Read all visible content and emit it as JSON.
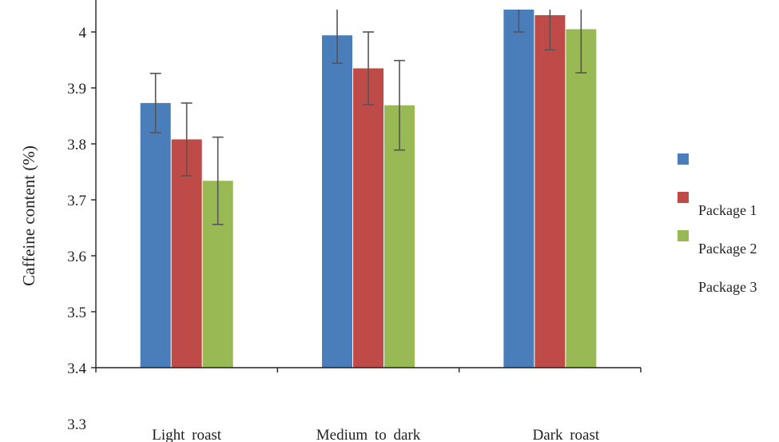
{
  "chart_data": {
    "type": "bar",
    "title": "",
    "xlabel": "",
    "ylabel": "Caffeine content (%)",
    "categories": [
      "Light roast",
      "Medium to dark",
      "Dark roast"
    ],
    "yticks": [
      4,
      3.9,
      3.8,
      3.7,
      3.6,
      3.5,
      3.4,
      3.3
    ],
    "ylim": [
      3.4,
      4.04
    ],
    "grid": false,
    "legend_position": "right",
    "legend_labels": [
      "Package 1",
      "Package 2",
      "Package 3"
    ],
    "series": [
      {
        "name": "Package 1",
        "color": "#4a7ebb",
        "values": [
          3.873,
          3.994,
          4.04
        ],
        "errors": [
          0.053,
          0.05,
          0.04
        ]
      },
      {
        "name": "Package 2",
        "color": "#be4b48",
        "values": [
          3.808,
          3.935,
          4.03
        ],
        "errors": [
          0.065,
          0.065,
          0.062
        ]
      },
      {
        "name": "Package 3",
        "color": "#98b954",
        "values": [
          3.734,
          3.869,
          4.005
        ],
        "errors": [
          0.078,
          0.08,
          0.078
        ]
      }
    ]
  }
}
